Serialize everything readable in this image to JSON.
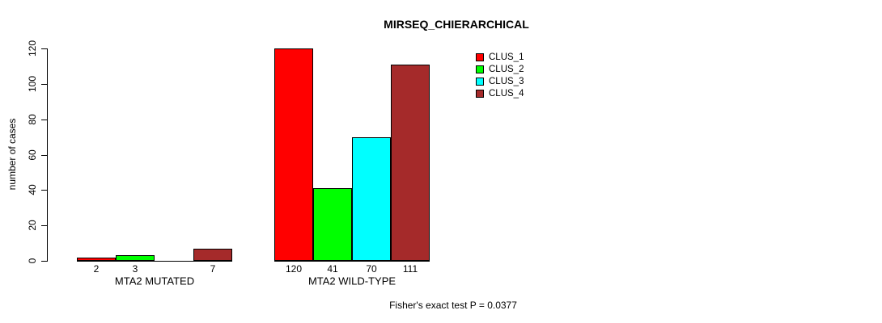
{
  "title": "MIRSEQ_CHIERARCHICAL",
  "annotation": "Fisher's exact test P = 0.0377",
  "axis_color": "#000000",
  "background_color": "#ffffff",
  "chart_data": {
    "type": "bar",
    "title": "MIRSEQ_CHIERARCHICAL",
    "xlabel": "",
    "ylabel": "number of cases",
    "ylim": [
      0,
      120
    ],
    "yticks": [
      0,
      20,
      40,
      60,
      80,
      100,
      120
    ],
    "grid": false,
    "legend_position": "top-right-inside",
    "categories": [
      "MTA2 MUTATED",
      "MTA2 WILD-TYPE"
    ],
    "series": [
      {
        "name": "CLUS_1",
        "color": "#FF0000",
        "values": [
          2,
          120
        ]
      },
      {
        "name": "CLUS_2",
        "color": "#00FF00",
        "values": [
          3,
          41
        ]
      },
      {
        "name": "CLUS_3",
        "color": "#00FFFF",
        "values": [
          0,
          70
        ]
      },
      {
        "name": "CLUS_4",
        "color": "#A52A2A",
        "values": [
          7,
          111
        ]
      }
    ],
    "bar_value_labels": {
      "MTA2 MUTATED": [
        "2",
        "3",
        "",
        "7"
      ],
      "MTA2 WILD-TYPE": [
        "120",
        "41",
        "70",
        "111"
      ]
    },
    "annotation": "Fisher's exact test P = 0.0377"
  }
}
